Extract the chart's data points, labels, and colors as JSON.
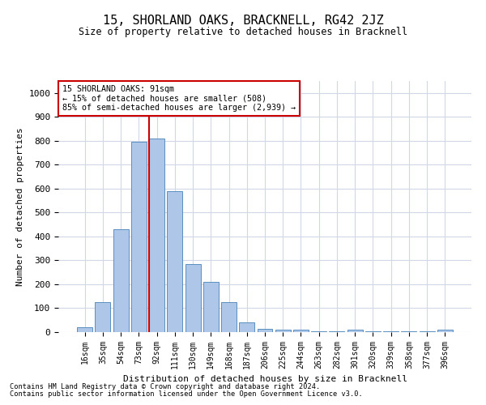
{
  "title": "15, SHORLAND OAKS, BRACKNELL, RG42 2JZ",
  "subtitle": "Size of property relative to detached houses in Bracknell",
  "xlabel": "Distribution of detached houses by size in Bracknell",
  "ylabel": "Number of detached properties",
  "categories": [
    "16sqm",
    "35sqm",
    "54sqm",
    "73sqm",
    "92sqm",
    "111sqm",
    "130sqm",
    "149sqm",
    "168sqm",
    "187sqm",
    "206sqm",
    "225sqm",
    "244sqm",
    "263sqm",
    "282sqm",
    "301sqm",
    "320sqm",
    "339sqm",
    "358sqm",
    "377sqm",
    "396sqm"
  ],
  "values": [
    20,
    125,
    430,
    795,
    810,
    590,
    285,
    210,
    125,
    40,
    15,
    10,
    10,
    5,
    5,
    10,
    5,
    5,
    5,
    5,
    10
  ],
  "bar_color": "#aec6e8",
  "bar_edge_color": "#5a8fc0",
  "annotation_text": "15 SHORLAND OAKS: 91sqm\n← 15% of detached houses are smaller (508)\n85% of semi-detached houses are larger (2,939) →",
  "annotation_box_color": "#ffffff",
  "annotation_box_edge_color": "#cc0000",
  "vline_color": "#cc0000",
  "ylim": [
    0,
    1050
  ],
  "yticks": [
    0,
    100,
    200,
    300,
    400,
    500,
    600,
    700,
    800,
    900,
    1000
  ],
  "footer_line1": "Contains HM Land Registry data © Crown copyright and database right 2024.",
  "footer_line2": "Contains public sector information licensed under the Open Government Licence v3.0.",
  "background_color": "#ffffff",
  "grid_color": "#d0d8e8"
}
